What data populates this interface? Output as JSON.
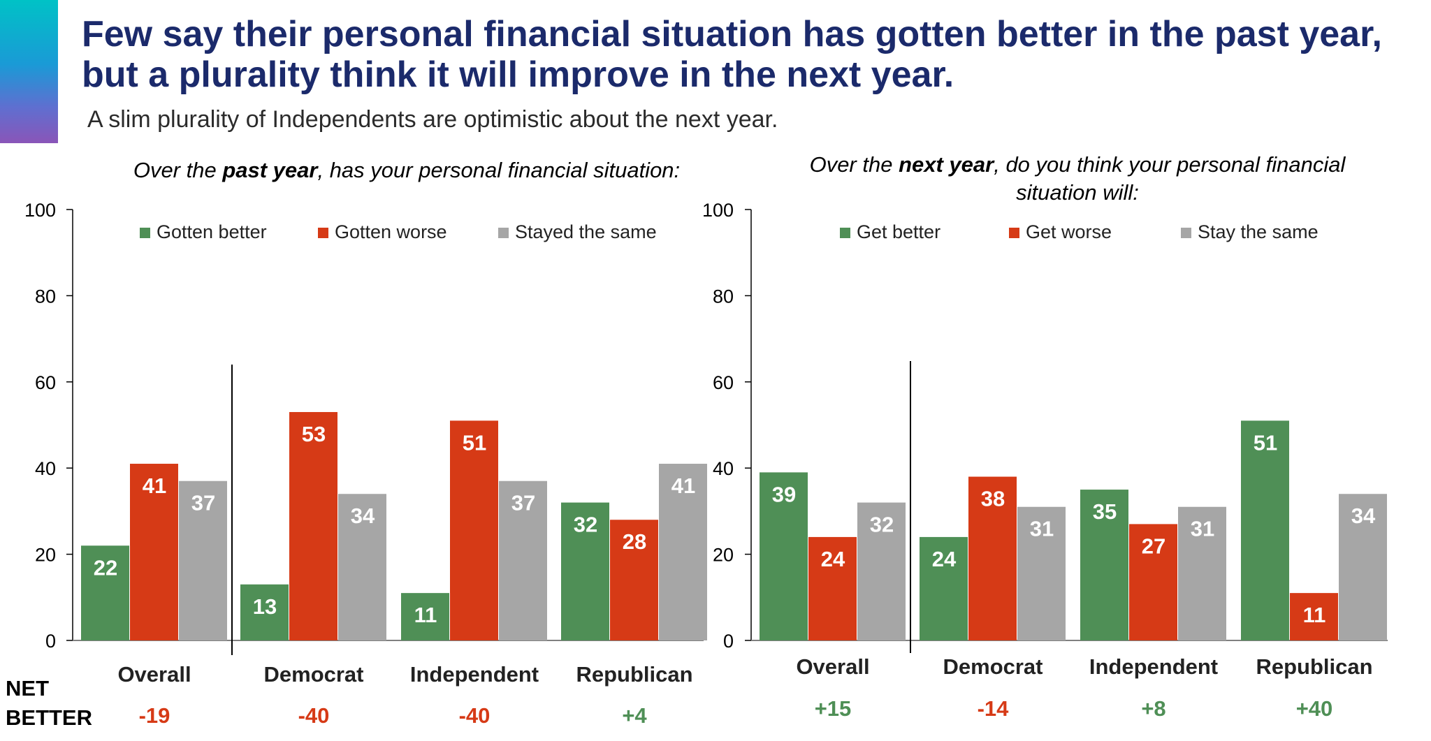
{
  "title": "Few say their personal financial situation has gotten better in the past year, but a plurality think it will improve in the next year.",
  "subtitle": "A slim plurality of Independents are optimistic about the next year.",
  "net_label_line1": "NET",
  "net_label_line2": "BETTER",
  "colors": {
    "better": "#4f8f56",
    "worse": "#d63a16",
    "same": "#a6a6a6",
    "neg": "#d63a16",
    "pos": "#4f8f56"
  },
  "chart_data": [
    {
      "type": "bar",
      "title_parts": [
        "Over the ",
        "past year",
        ", has your personal financial situation:"
      ],
      "categories": [
        "Overall",
        "Democrat",
        "Independent",
        "Republican"
      ],
      "series": [
        {
          "name": "Gotten better",
          "values": [
            22,
            13,
            11,
            32
          ]
        },
        {
          "name": "Gotten worse",
          "values": [
            41,
            53,
            51,
            28
          ]
        },
        {
          "name": "Stayed the same",
          "values": [
            37,
            34,
            37,
            41
          ]
        }
      ],
      "ylim": [
        0,
        100
      ],
      "yticks": [
        0,
        20,
        40,
        60,
        80,
        100
      ],
      "net_better": [
        "-19",
        "-40",
        "-40",
        "+4"
      ]
    },
    {
      "type": "bar",
      "title_parts": [
        "Over the ",
        "next year",
        ", do you think your personal financial",
        "situation will:"
      ],
      "categories": [
        "Overall",
        "Democrat",
        "Independent",
        "Republican"
      ],
      "series": [
        {
          "name": "Get better",
          "values": [
            39,
            24,
            35,
            51
          ]
        },
        {
          "name": "Get worse",
          "values": [
            24,
            38,
            27,
            11
          ]
        },
        {
          "name": "Stay the same",
          "values": [
            32,
            31,
            31,
            34
          ]
        }
      ],
      "ylim": [
        0,
        100
      ],
      "yticks": [
        0,
        20,
        40,
        60,
        80,
        100
      ],
      "net_better": [
        "+15",
        "-14",
        "+8",
        "+40"
      ]
    }
  ]
}
